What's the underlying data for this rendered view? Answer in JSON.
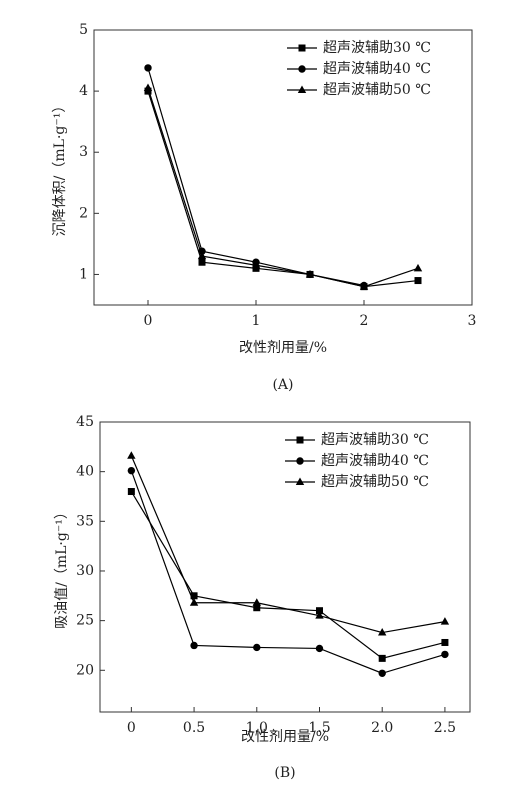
{
  "chart_data": [
    {
      "type": "line",
      "caption": "(A)",
      "x_label": "改性剂用量/%",
      "y_label": "沉降体积/（mL·g⁻¹）",
      "x": [
        0,
        0.5,
        1,
        1.5,
        2,
        2.5
      ],
      "xlim": [
        -0.5,
        3
      ],
      "xticks": [
        0,
        1,
        2,
        3
      ],
      "ylim": [
        0.5,
        5
      ],
      "yticks": [
        1,
        2,
        3,
        4,
        5
      ],
      "legend": "upper-right",
      "series": [
        {
          "name": "超声波辅助30 ℃",
          "color": "#000000",
          "marker": "square",
          "values": [
            4.0,
            1.2,
            1.1,
            1.0,
            0.8,
            0.9
          ]
        },
        {
          "name": "超声波辅助40 ℃",
          "color": "#000000",
          "marker": "circle",
          "values": [
            4.38,
            1.38,
            1.2,
            1.0,
            0.82,
            null
          ]
        },
        {
          "name": "超声波辅助50 ℃",
          "color": "#000000",
          "marker": "triangle",
          "values": [
            4.05,
            1.3,
            1.15,
            1.0,
            0.8,
            1.1
          ]
        }
      ]
    },
    {
      "type": "line",
      "caption": "(B)",
      "x_label": "改性剂用量/%",
      "y_label": "吸油值/（mL·g⁻¹）",
      "x": [
        0,
        0.5,
        1,
        1.5,
        2,
        2.5
      ],
      "xlim": [
        -0.25,
        2.7
      ],
      "xticks": [
        0,
        0.5,
        {
          "value": 1,
          "label": "1.0"
        },
        1.5,
        {
          "value": 2,
          "label": "2.0"
        },
        2.5
      ],
      "ylim": [
        15.8,
        45
      ],
      "yticks": [
        20,
        25,
        30,
        35,
        40,
        45
      ],
      "legend": "upper-right",
      "series": [
        {
          "name": "超声波辅助30 ℃",
          "color": "#000000",
          "marker": "square",
          "values": [
            38,
            27.5,
            26.3,
            26,
            21.2,
            22.8
          ]
        },
        {
          "name": "超声波辅助40 ℃",
          "color": "#000000",
          "marker": "circle",
          "values": [
            40.1,
            22.5,
            22.3,
            22.2,
            19.7,
            21.6
          ]
        },
        {
          "name": "超声波辅助50 ℃",
          "color": "#000000",
          "marker": "triangle",
          "values": [
            41.6,
            26.8,
            26.8,
            25.5,
            23.8,
            24.9
          ]
        }
      ]
    }
  ]
}
